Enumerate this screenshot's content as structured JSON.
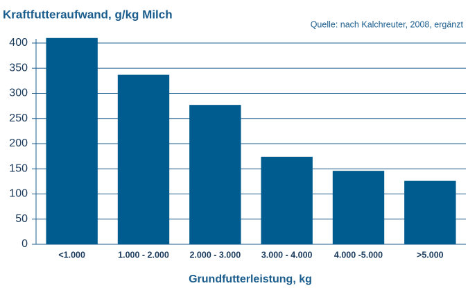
{
  "chart_data": {
    "type": "bar",
    "title": "Kraftfutteraufwand, g/kg Milch",
    "source": "Quelle: nach Kalchreuter, 2008, ergänzt",
    "x_label": "Grundfutterleistung, kg",
    "categories": [
      "<1.000",
      "1.000 - 2.000",
      "2.000 - 3.000",
      "3.000 - 4.000",
      "4.000 -5.000",
      ">5.000"
    ],
    "values": [
      410,
      337,
      277,
      174,
      146,
      126
    ],
    "color": "#005b8e",
    "ylim": [
      0,
      400
    ],
    "yticks": [
      0,
      50,
      100,
      150,
      200,
      250,
      300,
      350,
      400
    ],
    "grid": true
  }
}
